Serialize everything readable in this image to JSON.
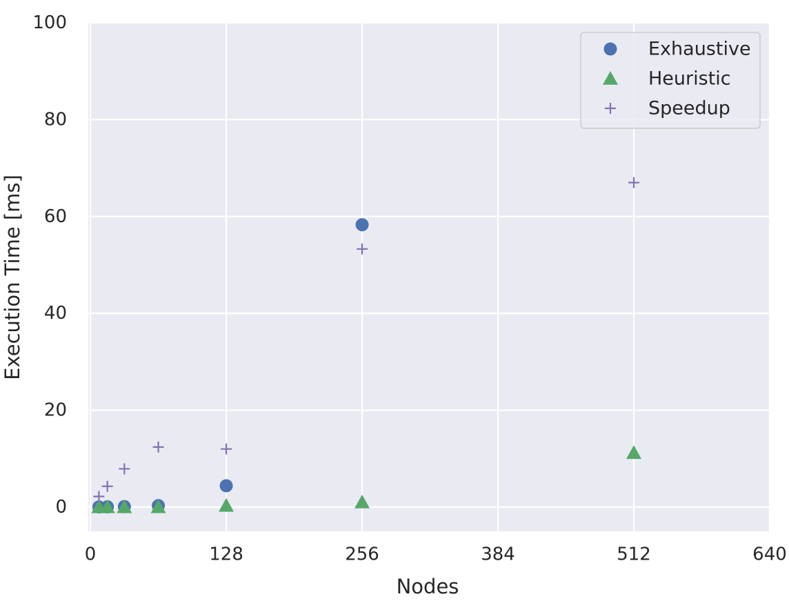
{
  "chart_data": {
    "type": "scatter",
    "xlabel": "Nodes",
    "ylabel": "Execution Time [ms]",
    "xlim": [
      -2,
      640
    ],
    "ylim": [
      -5,
      100
    ],
    "xticks": [
      0,
      128,
      256,
      384,
      512,
      640
    ],
    "yticks": [
      0,
      20,
      40,
      60,
      80,
      100
    ],
    "grid": true,
    "legend_position": "top-right",
    "colors": {
      "background": "#EAEAF2",
      "grid": "#FFFFFF",
      "text": "#262626"
    },
    "series": [
      {
        "name": "Exhaustive",
        "marker": "circle",
        "color": "#4C72B0",
        "x": [
          8,
          16,
          32,
          64,
          128,
          256
        ],
        "y": [
          0.02,
          0.05,
          0.1,
          0.3,
          4.4,
          58.3
        ]
      },
      {
        "name": "Heuristic",
        "marker": "triangle",
        "color": "#55A868",
        "x": [
          8,
          16,
          32,
          64,
          128,
          256,
          512
        ],
        "y": [
          0.01,
          0.01,
          0.01,
          0.02,
          0.3,
          1.0,
          11.2
        ]
      },
      {
        "name": "Speedup",
        "marker": "plus",
        "color": "#8172B2",
        "x": [
          8,
          16,
          32,
          64,
          128,
          256,
          512
        ],
        "y": [
          2.2,
          4.3,
          7.9,
          12.4,
          12.0,
          53.3,
          67.0
        ]
      }
    ]
  }
}
